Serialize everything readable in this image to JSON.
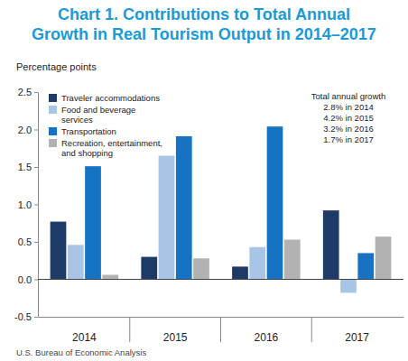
{
  "chart_data": {
    "type": "bar",
    "title": [
      "Chart 1. Contributions to Total Annual",
      "Growth in Real Tourism Output in 2014–2017"
    ],
    "y_label": "Percentage points",
    "source": "U.S. Bureau of Economic Analysis",
    "annotations": [
      "Total annual growth",
      "2.8% in 2014",
      "4.2% in 2015",
      "3.2% in 2016",
      "1.7% in 2017"
    ],
    "categories": [
      "2014",
      "2015",
      "2016",
      "2017"
    ],
    "series": [
      {
        "name": "Traveler accommodations",
        "color": "#1e3a66",
        "values": [
          0.77,
          0.3,
          0.17,
          0.92
        ]
      },
      {
        "name": "Food and beverage services",
        "color": "#a9c5e6",
        "values": [
          0.46,
          1.65,
          0.43,
          -0.18
        ]
      },
      {
        "name": "Transportation",
        "color": "#1673c4",
        "values": [
          1.51,
          1.91,
          2.04,
          0.35
        ]
      },
      {
        "name": "Recreation, entertainment, and shopping",
        "color": "#b2b2b2",
        "values": [
          0.06,
          0.28,
          0.53,
          0.57
        ]
      }
    ],
    "ylim": [
      -0.5,
      2.5
    ],
    "yticks": [
      -0.5,
      {
        "value": 0,
        "label": "0.0"
      },
      0.5,
      {
        "value": 1,
        "label": "1.0"
      },
      1.5,
      {
        "value": 2,
        "label": "2.0"
      },
      2.5
    ],
    "grid": false,
    "legend": "upper left"
  }
}
